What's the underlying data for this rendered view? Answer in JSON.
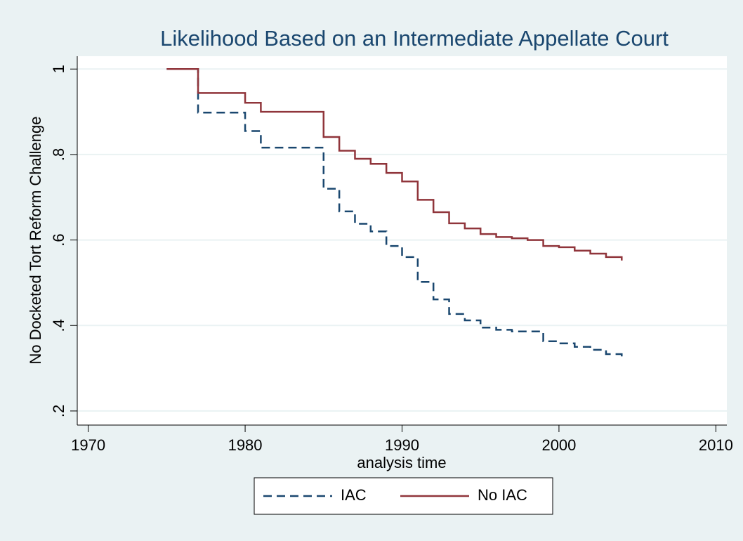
{
  "chart_data": {
    "type": "line",
    "drawstyle": "steps-post",
    "title": "Likelihood Based on an Intermediate Appellate Court",
    "xlabel": "analysis time",
    "ylabel": "No Docketed Tort Reform Challenge",
    "xlim": [
      1969.3,
      2010.7
    ],
    "xticks": [
      1970,
      1980,
      1990,
      2000,
      2010
    ],
    "ylim": [
      0.167,
      1.03
    ],
    "yticks": [
      {
        "value": 0.2,
        "label": ".2"
      },
      {
        "value": 0.4,
        "label": ".4"
      },
      {
        "value": 0.6,
        "label": ".6"
      },
      {
        "value": 0.8,
        "label": ".8"
      },
      1
    ],
    "grid": true,
    "legend": "bottom",
    "series": [
      {
        "name": "IAC",
        "color": "#1a476f",
        "dashed": true,
        "x": [
          1975,
          1977,
          1980,
          1981,
          1985,
          1986,
          1987,
          1988,
          1989,
          1990,
          1991,
          1992,
          1993,
          1994,
          1995,
          1996,
          1997,
          1999,
          2000,
          2001,
          2002,
          2003,
          2004
        ],
        "values": [
          1,
          0.898,
          0.855,
          0.816,
          0.72,
          0.667,
          0.638,
          0.62,
          0.586,
          0.56,
          0.502,
          0.461,
          0.427,
          0.412,
          0.395,
          0.39,
          0.386,
          0.363,
          0.358,
          0.35,
          0.343,
          0.333,
          0.321
        ]
      },
      {
        "name": "No IAC",
        "color": "#90353b",
        "dashed": false,
        "x": [
          1975,
          1977,
          1980,
          1981,
          1985,
          1986,
          1987,
          1988,
          1989,
          1990,
          1991,
          1992,
          1993,
          1994,
          1995,
          1996,
          1997,
          1998,
          1999,
          2000,
          2001,
          2002,
          2003,
          2004
        ],
        "values": [
          1,
          0.944,
          0.921,
          0.9,
          0.841,
          0.809,
          0.79,
          0.778,
          0.757,
          0.737,
          0.694,
          0.665,
          0.639,
          0.627,
          0.614,
          0.607,
          0.604,
          0.6,
          0.586,
          0.583,
          0.575,
          0.568,
          0.56,
          0.552
        ]
      }
    ]
  }
}
